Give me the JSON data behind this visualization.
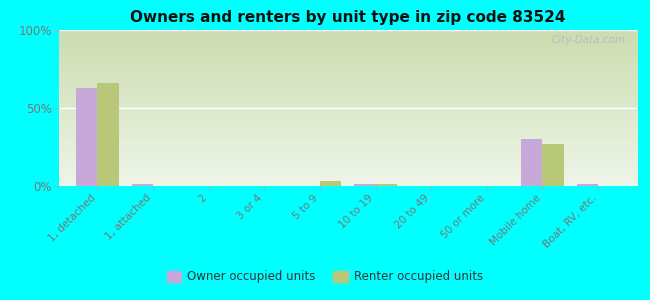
{
  "title": "Owners and renters by unit type in zip code 83524",
  "categories": [
    "1, detached",
    "1, attached",
    "2",
    "3 or 4",
    "5 to 9",
    "10 to 19",
    "20 to 49",
    "50 or more",
    "Mobile home",
    "Boat, RV, etc."
  ],
  "owner_values": [
    63,
    1,
    0,
    0,
    0,
    1,
    0,
    0,
    30,
    1
  ],
  "renter_values": [
    66,
    0,
    0,
    0,
    3,
    1,
    0,
    0,
    27,
    0
  ],
  "owner_color": "#c8a8d8",
  "renter_color": "#b8c878",
  "background_color": "#00ffff",
  "grad_top": "#ccddb0",
  "grad_bottom": "#eef5e8",
  "ylabel_ticks": [
    "0%",
    "50%",
    "100%"
  ],
  "ytick_vals": [
    0,
    50,
    100
  ],
  "ylim": [
    0,
    100
  ],
  "bar_width": 0.38,
  "watermark": "City-Data.com",
  "legend_owner": "Owner occupied units",
  "legend_renter": "Renter occupied units",
  "tick_color": "#777777",
  "grid_color": "#ffffff",
  "title_color": "#111111"
}
